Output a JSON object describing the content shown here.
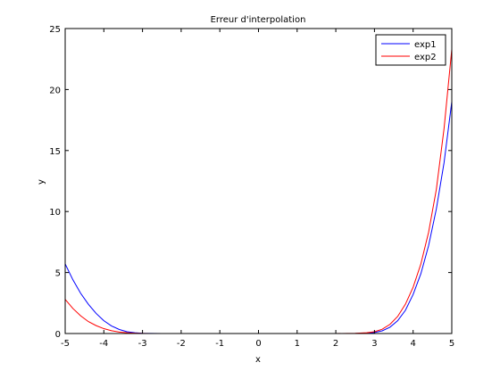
{
  "chart_data": {
    "type": "line",
    "title": "Erreur d'interpolation",
    "xlabel": "x",
    "ylabel": "y",
    "xlim": [
      -5,
      5
    ],
    "ylim": [
      0,
      25
    ],
    "x_ticks": [
      -5,
      -4,
      -3,
      -2,
      -1,
      0,
      1,
      2,
      3,
      4,
      5
    ],
    "y_ticks": [
      0,
      5,
      10,
      15,
      20,
      25
    ],
    "x_tick_labels": [
      "-5",
      "-4",
      "-3",
      "-2",
      "-1",
      "0",
      "1",
      "2",
      "3",
      "4",
      "5"
    ],
    "y_tick_labels": [
      "0",
      "5",
      "10",
      "15",
      "20",
      "25"
    ],
    "grid": false,
    "legend_position": "top-right",
    "series": [
      {
        "name": "exp1",
        "color": "#0000ff",
        "x": [
          -5,
          -4.8,
          -4.6,
          -4.4,
          -4.2,
          -4,
          -3.8,
          -3.6,
          -3.4,
          -3.2,
          -3,
          -2.8,
          -2.5,
          -2,
          -1,
          0,
          1,
          2,
          2.5,
          2.8,
          3,
          3.2,
          3.4,
          3.6,
          3.8,
          4,
          4.2,
          4.4,
          4.6,
          4.8,
          5
        ],
        "y": [
          5.7,
          4.4,
          3.3,
          2.4,
          1.65,
          1.05,
          0.62,
          0.33,
          0.15,
          0.06,
          0.02,
          0.01,
          0.0,
          0.0,
          0.0,
          0.0,
          0.0,
          0.0,
          0.0,
          0.03,
          0.08,
          0.22,
          0.52,
          1.05,
          1.9,
          3.2,
          4.9,
          7.2,
          10.2,
          14.0,
          19.0
        ]
      },
      {
        "name": "exp2",
        "color": "#ff0000",
        "x": [
          -5,
          -4.8,
          -4.6,
          -4.4,
          -4.2,
          -4,
          -3.8,
          -3.6,
          -3.4,
          -3.2,
          -3,
          -2.8,
          -2.5,
          -2,
          -1,
          0,
          1,
          2,
          2.5,
          2.8,
          3,
          3.2,
          3.4,
          3.6,
          3.8,
          4,
          4.2,
          4.4,
          4.6,
          4.8,
          5
        ],
        "y": [
          2.8,
          2.05,
          1.45,
          0.98,
          0.65,
          0.4,
          0.23,
          0.12,
          0.06,
          0.03,
          0.01,
          0.0,
          0.0,
          0.0,
          0.0,
          0.0,
          0.0,
          0.0,
          0.02,
          0.06,
          0.15,
          0.35,
          0.75,
          1.4,
          2.4,
          3.8,
          5.7,
          8.3,
          11.8,
          16.8,
          23.3
        ]
      }
    ]
  }
}
